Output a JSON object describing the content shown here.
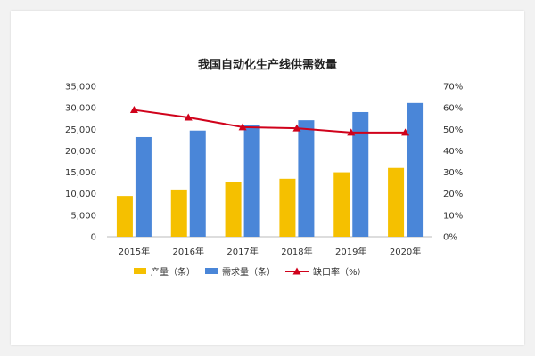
{
  "chart_data": {
    "type": "bar",
    "title": "我国自动化生产线供需数量",
    "categories": [
      "2015年",
      "2016年",
      "2017年",
      "2018年",
      "2019年",
      "2020年"
    ],
    "series": [
      {
        "name": "产量（条）",
        "kind": "bar",
        "axis": "left",
        "color": "#f5c000",
        "values": [
          9500,
          11000,
          12700,
          13500,
          15000,
          16000
        ]
      },
      {
        "name": "需求量（条）",
        "kind": "bar",
        "axis": "left",
        "color": "#4a86d8",
        "values": [
          23200,
          24700,
          25900,
          27100,
          29000,
          31100
        ]
      },
      {
        "name": "缺口率（%）",
        "kind": "line",
        "axis": "right",
        "color": "#d0021b",
        "values": [
          59,
          55.5,
          51,
          50.5,
          48.5,
          48.5
        ]
      }
    ],
    "y_left": {
      "min": 0,
      "max": 35000,
      "ticks": [
        "0",
        "5,000",
        "10,000",
        "15,000",
        "20,000",
        "25,000",
        "30,000",
        "35,000"
      ]
    },
    "y_right": {
      "min": 0,
      "max": 70,
      "ticks": [
        "0%",
        "10%",
        "20%",
        "30%",
        "40%",
        "50%",
        "60%",
        "70%"
      ]
    },
    "grid": false,
    "legend_position": "bottom"
  }
}
